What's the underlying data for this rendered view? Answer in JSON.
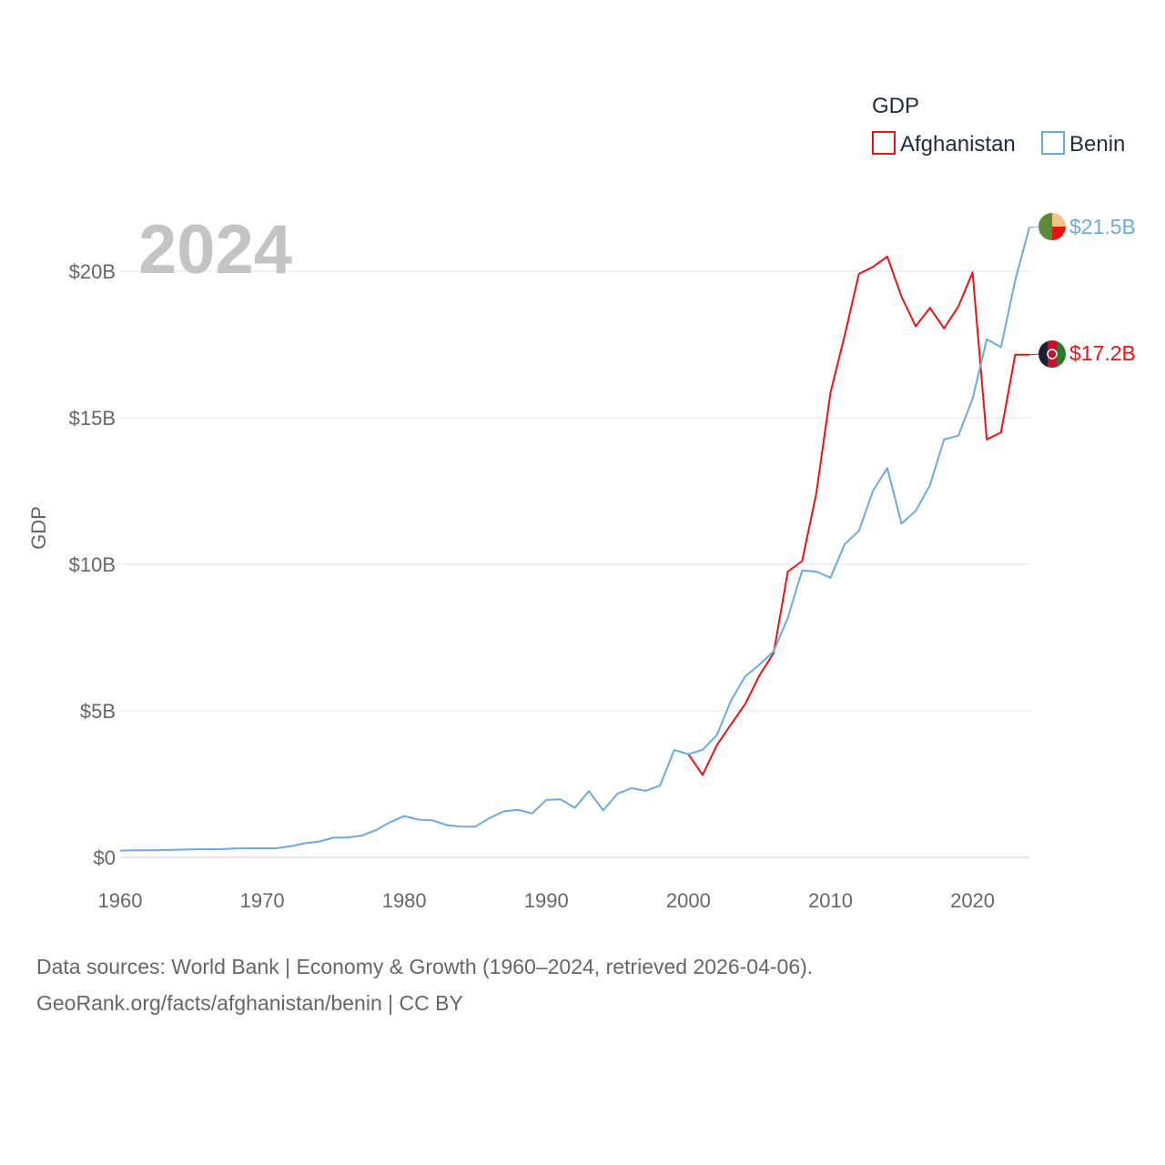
{
  "colors": {
    "afghanistan": "#ee1111",
    "benin": "#6aaae4",
    "grid": "#e6e6e6",
    "text": "#666666",
    "legend_text": "#1f2a44",
    "year": "#c4c4c4"
  },
  "year_label": "2024",
  "legend": {
    "title": "GDP",
    "items": [
      {
        "name": "Afghanistan",
        "color_key": "afghanistan"
      },
      {
        "name": "Benin",
        "color_key": "benin"
      }
    ]
  },
  "end_labels": {
    "afghanistan": "$17.2B",
    "benin": "$21.5B"
  },
  "flags": {
    "afghanistan": "afghanistan-flag-icon",
    "benin": "benin-flag-icon"
  },
  "source": {
    "line1": "Data sources: World Bank | Economy & Growth (1960–2024, retrieved 2026-04-06).",
    "line2": "GeoRank.org/facts/afghanistan/benin | CC BY"
  },
  "chart_data": {
    "type": "line",
    "title": "GDP",
    "xlabel": "",
    "ylabel": "GDP",
    "xlim": [
      1960,
      2024
    ],
    "ylim": [
      0,
      22
    ],
    "x_ticks": [
      1960,
      1970,
      1980,
      1990,
      2000,
      2010,
      2020
    ],
    "x_tick_labels": [
      "1960",
      "1970",
      "1980",
      "1990",
      "2000",
      "2010",
      "2020"
    ],
    "y_ticks": [
      0,
      5,
      10,
      15,
      20
    ],
    "y_tick_labels": [
      "$0",
      "$5B",
      "$10B",
      "$15B",
      "$20B"
    ],
    "units": "billions USD",
    "series": [
      {
        "name": "Afghanistan",
        "key": "afghanistan",
        "x": [
          2000,
          2001,
          2002,
          2003,
          2004,
          2005,
          2006,
          2007,
          2008,
          2009,
          2010,
          2011,
          2012,
          2013,
          2014,
          2015,
          2016,
          2017,
          2018,
          2019,
          2020,
          2021,
          2022,
          2023,
          2024
        ],
        "values": [
          3.52,
          2.81,
          3.83,
          4.54,
          5.23,
          6.21,
          6.97,
          9.75,
          10.11,
          12.42,
          15.86,
          17.81,
          19.91,
          20.15,
          20.5,
          19.13,
          18.12,
          18.75,
          18.05,
          18.8,
          19.96,
          14.26,
          14.5,
          17.15,
          17.15
        ]
      },
      {
        "name": "Benin",
        "key": "benin",
        "x": [
          1960,
          1961,
          1962,
          1963,
          1964,
          1965,
          1966,
          1967,
          1968,
          1969,
          1970,
          1971,
          1972,
          1973,
          1974,
          1975,
          1976,
          1977,
          1978,
          1979,
          1980,
          1981,
          1982,
          1983,
          1984,
          1985,
          1986,
          1987,
          1988,
          1989,
          1990,
          1991,
          1992,
          1993,
          1994,
          1995,
          1996,
          1997,
          1998,
          1999,
          2000,
          2001,
          2002,
          2003,
          2004,
          2005,
          2006,
          2007,
          2008,
          2009,
          2010,
          2011,
          2012,
          2013,
          2014,
          2015,
          2016,
          2017,
          2018,
          2019,
          2020,
          2021,
          2022,
          2023,
          2024
        ],
        "values": [
          0.23,
          0.24,
          0.24,
          0.25,
          0.26,
          0.27,
          0.28,
          0.28,
          0.3,
          0.31,
          0.31,
          0.31,
          0.38,
          0.48,
          0.54,
          0.67,
          0.68,
          0.74,
          0.93,
          1.2,
          1.41,
          1.29,
          1.26,
          1.1,
          1.05,
          1.05,
          1.34,
          1.57,
          1.62,
          1.5,
          1.96,
          1.98,
          1.69,
          2.26,
          1.6,
          2.17,
          2.36,
          2.27,
          2.45,
          3.66,
          3.52,
          3.67,
          4.17,
          5.35,
          6.18,
          6.57,
          7.03,
          8.17,
          9.79,
          9.75,
          9.54,
          10.69,
          11.14,
          12.52,
          13.28,
          11.39,
          11.82,
          12.7,
          14.26,
          14.39,
          15.65,
          17.68,
          17.41,
          19.68,
          21.5
        ]
      }
    ]
  }
}
